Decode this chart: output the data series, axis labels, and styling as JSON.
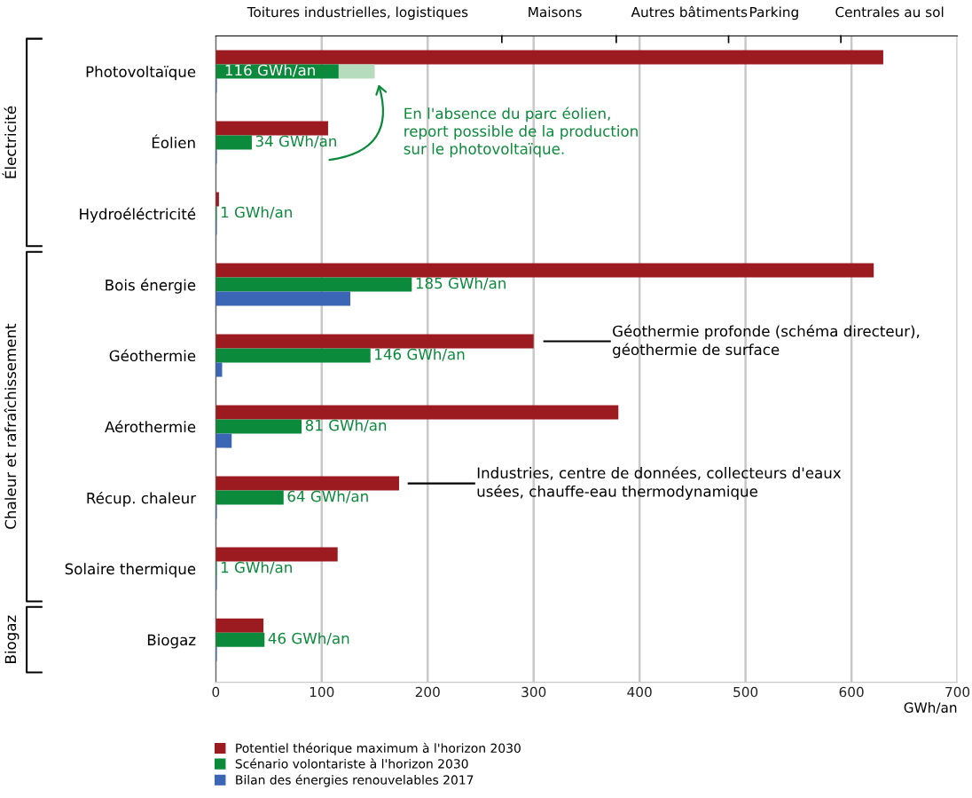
{
  "chart_data": {
    "type": "bar",
    "orientation": "horizontal",
    "categories": [
      "Photovoltaïque",
      "Éolien",
      "Hydroéléctricité",
      "Bois énergie",
      "Géothermie",
      "Aérothermie",
      "Récup. chaleur",
      "Solaire thermique",
      "Biogaz"
    ],
    "series": [
      {
        "name": "Potentiel théorique maximum à l'horizon 2030",
        "color": "#9b1b20",
        "values": [
          630,
          106,
          3,
          621,
          300,
          380,
          173,
          115,
          45
        ]
      },
      {
        "name": "Scénario volontariste à l'horizon 2030",
        "color": "#0a8a3a",
        "values": [
          116,
          34,
          1,
          185,
          146,
          81,
          64,
          1,
          46
        ],
        "value_labels": [
          "116 GWh/an",
          "34 GWh/an",
          "1 GWh/an",
          "185 GWh/an",
          "146 GWh/an",
          "81 GWh/an",
          "64 GWh/an",
          "1 GWh/an",
          "46 GWh/an"
        ]
      },
      {
        "color": "#b5dcbd",
        "base": [
          116,
          null,
          null,
          null,
          null,
          null,
          null,
          null,
          null
        ],
        "values": [
          34,
          null,
          null,
          null,
          null,
          null,
          null,
          null,
          null
        ]
      },
      {
        "name": "Bilan des énergies renouvelables 2017",
        "color": "#3a66b5",
        "values": [
          1,
          1,
          1,
          127,
          6,
          15,
          1,
          1,
          1
        ]
      }
    ],
    "xlim": [
      0,
      700
    ],
    "xticks": [
      0,
      100,
      200,
      300,
      400,
      500,
      600,
      700
    ],
    "xlabel": "GWh/an",
    "grid": "x",
    "legend": "bottom left",
    "annotations": [
      "Électricité",
      "Chaleur et rafraîchissement",
      "Biogaz",
      "En l'absence du parc éolien,\nreport possible de la production\nsur le photovoltaïque.",
      "Géothermie profonde (schéma directeur),\ngéothermie de surface",
      "Industries, centre de données, collecteurs d'eaux\nusées, chauffe-eau thermodynamique",
      "Toitures industrielles, logistiques",
      "Maisons",
      "Autres bâtiments",
      "Parking",
      "Centrales au sol"
    ]
  }
}
